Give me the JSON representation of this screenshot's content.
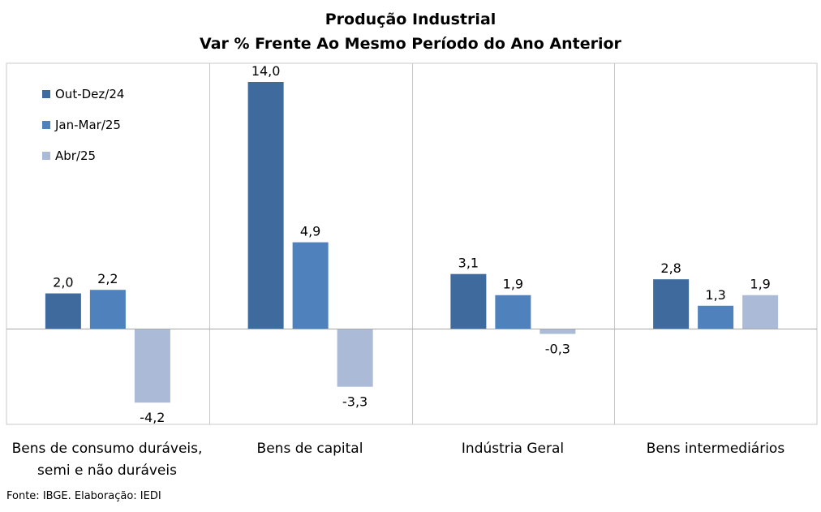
{
  "chart_data": {
    "type": "bar",
    "title": "Produção Industrial",
    "subtitle": "Var % Frente Ao Mesmo Período do Ano Anterior",
    "categories": [
      "Bens de consumo duráveis, semi e não duráveis",
      "Bens de capital",
      "Indústria Geral",
      "Bens intermediários"
    ],
    "category_lines": [
      [
        "Bens de consumo duráveis,",
        "semi e não duráveis"
      ],
      [
        "Bens de capital"
      ],
      [
        "Indústria Geral"
      ],
      [
        "Bens intermediários"
      ]
    ],
    "series": [
      {
        "name": "Out-Dez/24",
        "values": [
          2.0,
          14.0,
          3.1,
          2.8
        ],
        "labels": [
          "2,0",
          "14,0",
          "3,1",
          "2,8"
        ],
        "color": "#3E6A9E"
      },
      {
        "name": "Jan-Mar/25",
        "values": [
          2.2,
          4.9,
          1.9,
          1.3
        ],
        "labels": [
          "2,2",
          "4,9",
          "1,9",
          "1,3"
        ],
        "color": "#4F81BD"
      },
      {
        "name": "Abr/25",
        "values": [
          -4.2,
          -3.3,
          -0.3,
          1.9
        ],
        "labels": [
          "-4,2",
          "-3,3",
          "-0,3",
          "1,9"
        ],
        "color": "#AABAD7"
      }
    ],
    "legend_position": "top-left",
    "grid": false
  },
  "footer": {
    "source": "Fonte: IBGE. Elaboração: IEDI"
  }
}
